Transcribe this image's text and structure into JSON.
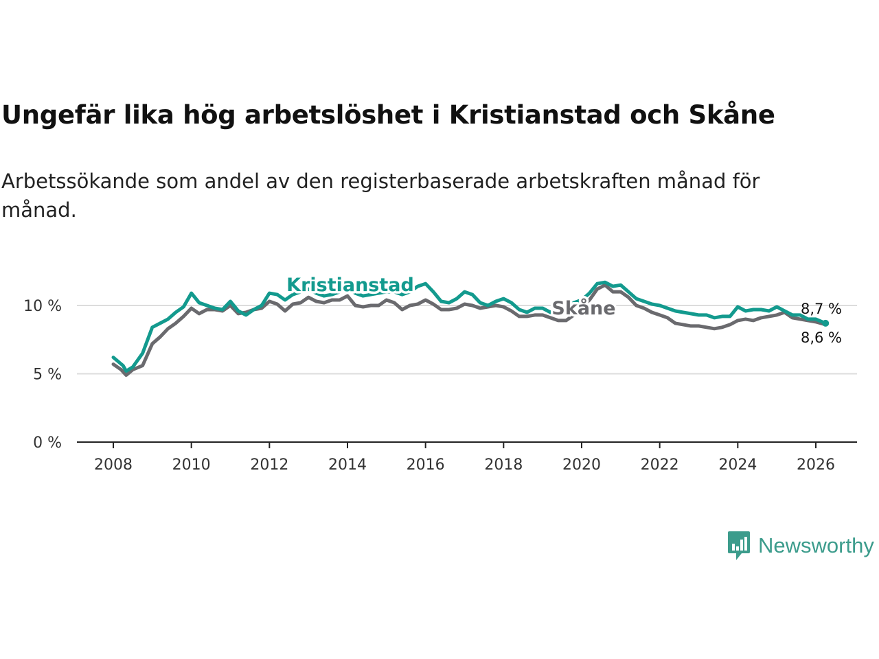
{
  "header": {
    "title": "Ungefär lika hög arbetslöshet i Kristianstad och Skåne",
    "subtitle": "Arbetssökande som andel av den registerbaserade arbetskraften månad för månad."
  },
  "brand": {
    "name": "Newsworthy",
    "color": "#3c9c8c"
  },
  "chart_data": {
    "type": "line",
    "title": "Ungefär lika hög arbetslöshet i Kristianstad och Skåne",
    "subtitle": "Arbetssökande som andel av den registerbaserade arbetskraften månad för månad.",
    "xlabel": "",
    "ylabel": "",
    "xlim": [
      2007.8,
      2026.9
    ],
    "ylim": [
      0,
      12
    ],
    "grid": true,
    "x_ticks": [
      2008,
      2010,
      2012,
      2014,
      2016,
      2018,
      2020,
      2022,
      2024,
      2026
    ],
    "x_tick_labels": [
      "2008",
      "2010",
      "2012",
      "2014",
      "2016",
      "2018",
      "2020",
      "2022",
      "2024",
      "2026"
    ],
    "y_ticks": [
      0,
      5,
      10
    ],
    "y_tick_labels": [
      "0 %",
      "5 %",
      "10 %"
    ],
    "end_labels": [
      "8,7 %",
      "8,6 %"
    ],
    "series": [
      {
        "name": "Kristianstad",
        "color": "#139a8e",
        "x": [
          2008.0,
          2008.25,
          2008.33,
          2008.5,
          2008.75,
          2009.0,
          2009.2,
          2009.4,
          2009.6,
          2009.8,
          2010.0,
          2010.2,
          2010.4,
          2010.6,
          2010.8,
          2011.0,
          2011.2,
          2011.4,
          2011.6,
          2011.8,
          2012.0,
          2012.2,
          2012.4,
          2012.6,
          2012.8,
          2013.0,
          2013.2,
          2013.4,
          2013.6,
          2013.8,
          2014.0,
          2014.2,
          2014.4,
          2014.6,
          2014.8,
          2015.0,
          2015.2,
          2015.4,
          2015.6,
          2015.8,
          2016.0,
          2016.2,
          2016.4,
          2016.6,
          2016.8,
          2017.0,
          2017.2,
          2017.4,
          2017.6,
          2017.8,
          2018.0,
          2018.2,
          2018.4,
          2018.6,
          2018.8,
          2019.0,
          2019.2,
          2019.4,
          2019.6,
          2019.8,
          2020.0,
          2020.2,
          2020.4,
          2020.6,
          2020.8,
          2021.0,
          2021.2,
          2021.4,
          2021.6,
          2021.8,
          2022.0,
          2022.2,
          2022.4,
          2022.6,
          2022.8,
          2023.0,
          2023.2,
          2023.4,
          2023.6,
          2023.8,
          2024.0,
          2024.2,
          2024.4,
          2024.6,
          2024.8,
          2025.0,
          2025.2,
          2025.4,
          2025.6,
          2025.8,
          2026.0,
          2026.25
        ],
        "values": [
          6.2,
          5.6,
          5.2,
          5.5,
          6.5,
          8.4,
          8.7,
          9.0,
          9.5,
          9.9,
          10.9,
          10.2,
          10.0,
          9.8,
          9.7,
          10.3,
          9.6,
          9.3,
          9.7,
          10.0,
          10.9,
          10.8,
          10.4,
          10.8,
          11.0,
          11.2,
          10.9,
          10.7,
          10.8,
          11.0,
          11.3,
          10.9,
          10.7,
          10.8,
          10.9,
          11.0,
          11.0,
          10.8,
          11.0,
          11.4,
          11.6,
          11.0,
          10.3,
          10.2,
          10.5,
          11.0,
          10.8,
          10.2,
          10.0,
          10.3,
          10.5,
          10.2,
          9.7,
          9.5,
          9.8,
          9.8,
          9.5,
          9.6,
          9.9,
          10.2,
          10.4,
          10.9,
          11.6,
          11.7,
          11.4,
          11.5,
          11.0,
          10.5,
          10.3,
          10.1,
          10.0,
          9.8,
          9.6,
          9.5,
          9.4,
          9.3,
          9.3,
          9.1,
          9.2,
          9.2,
          9.9,
          9.6,
          9.7,
          9.7,
          9.6,
          9.9,
          9.6,
          9.3,
          9.3,
          9.0,
          9.0,
          8.7
        ]
      },
      {
        "name": "Skåne",
        "color": "#6a6a6e",
        "x": [
          2008.0,
          2008.2,
          2008.33,
          2008.5,
          2008.75,
          2009.0,
          2009.2,
          2009.4,
          2009.6,
          2009.8,
          2010.0,
          2010.2,
          2010.4,
          2010.6,
          2010.8,
          2011.0,
          2011.2,
          2011.4,
          2011.6,
          2011.8,
          2012.0,
          2012.2,
          2012.4,
          2012.6,
          2012.8,
          2013.0,
          2013.2,
          2013.4,
          2013.6,
          2013.8,
          2014.0,
          2014.2,
          2014.4,
          2014.6,
          2014.8,
          2015.0,
          2015.2,
          2015.4,
          2015.6,
          2015.8,
          2016.0,
          2016.2,
          2016.4,
          2016.6,
          2016.8,
          2017.0,
          2017.2,
          2017.4,
          2017.6,
          2017.8,
          2018.0,
          2018.2,
          2018.4,
          2018.6,
          2018.8,
          2019.0,
          2019.2,
          2019.4,
          2019.6,
          2019.8,
          2020.0,
          2020.2,
          2020.4,
          2020.6,
          2020.8,
          2021.0,
          2021.2,
          2021.4,
          2021.6,
          2021.8,
          2022.0,
          2022.2,
          2022.4,
          2022.6,
          2022.8,
          2023.0,
          2023.2,
          2023.4,
          2023.6,
          2023.8,
          2024.0,
          2024.2,
          2024.4,
          2024.6,
          2024.8,
          2025.0,
          2025.2,
          2025.4,
          2025.6,
          2025.8,
          2026.0,
          2026.25
        ],
        "values": [
          5.7,
          5.3,
          4.9,
          5.3,
          5.6,
          7.2,
          7.7,
          8.3,
          8.7,
          9.2,
          9.8,
          9.4,
          9.7,
          9.7,
          9.6,
          10.0,
          9.4,
          9.5,
          9.7,
          9.8,
          10.3,
          10.1,
          9.6,
          10.1,
          10.2,
          10.6,
          10.3,
          10.2,
          10.4,
          10.4,
          10.7,
          10.0,
          9.9,
          10.0,
          10.0,
          10.4,
          10.2,
          9.7,
          10.0,
          10.1,
          10.4,
          10.1,
          9.7,
          9.7,
          9.8,
          10.1,
          10.0,
          9.8,
          9.9,
          10.0,
          9.9,
          9.6,
          9.2,
          9.2,
          9.3,
          9.3,
          9.1,
          8.9,
          8.9,
          9.3,
          9.9,
          10.4,
          11.2,
          11.5,
          11.0,
          11.0,
          10.6,
          10.0,
          9.8,
          9.5,
          9.3,
          9.1,
          8.7,
          8.6,
          8.5,
          8.5,
          8.4,
          8.3,
          8.4,
          8.6,
          8.9,
          9.0,
          8.9,
          9.1,
          9.2,
          9.3,
          9.5,
          9.1,
          9.0,
          8.9,
          8.8,
          8.6
        ]
      }
    ]
  }
}
